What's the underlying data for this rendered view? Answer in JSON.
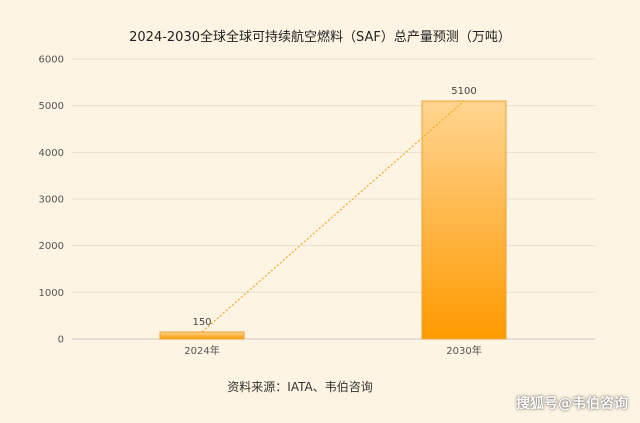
{
  "chart_data": {
    "type": "bar",
    "title": "2024-2030全球全球可持续航空燃料（SAF）总产量预测（万吨）",
    "xlabel": "",
    "ylabel": "",
    "categories": [
      "2024年",
      "2030年"
    ],
    "values": [
      150,
      5100
    ],
    "data_labels": [
      "150",
      "5100"
    ],
    "ylim": [
      0,
      6000
    ],
    "yticks": [
      0,
      1000,
      2000,
      3000,
      4000,
      5000,
      6000
    ],
    "ytick_labels": [
      "0",
      "1000",
      "2000",
      "3000",
      "4000",
      "5000",
      "6000"
    ],
    "grid": true,
    "legend": "none",
    "trendline": "dotted",
    "colors": {
      "bar_top": "#ffd591",
      "bar_bottom": "#ff9a00",
      "bar_stroke": "#f0a030",
      "trendline": "#f5a623",
      "grid": "#e9e0cf",
      "axis": "#cccccc",
      "background": "#fdf4e3"
    }
  },
  "source": "资料来源：IATA、韦伯咨询",
  "watermark": "搜狐号@韦伯咨询"
}
